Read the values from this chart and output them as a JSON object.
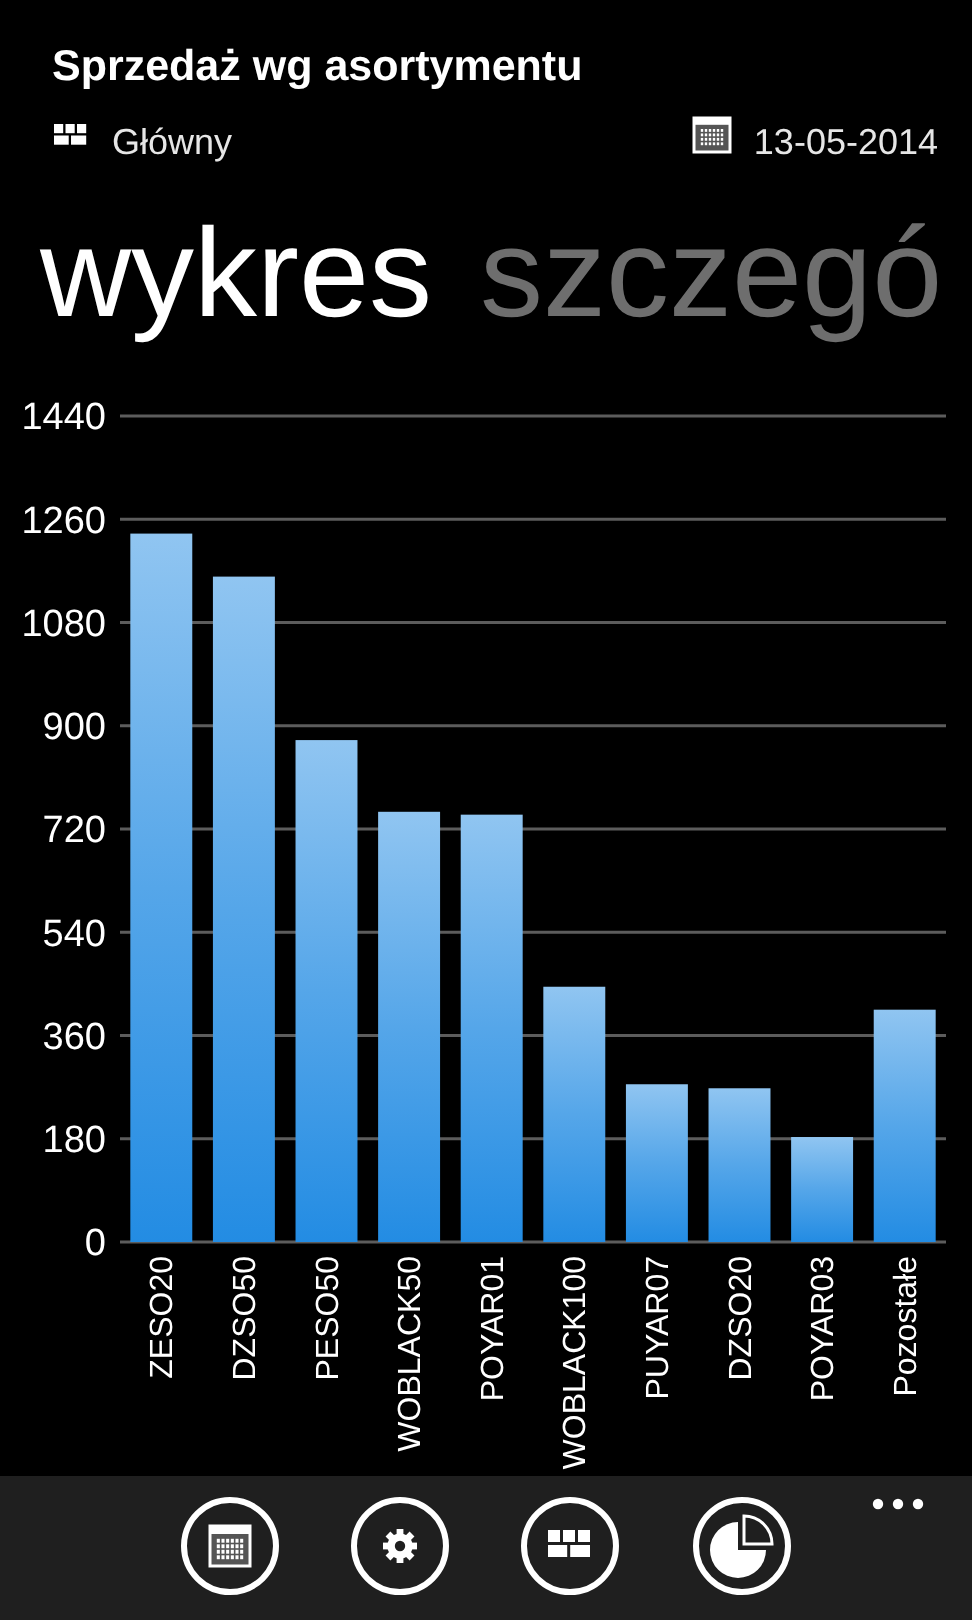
{
  "chart_data": {
    "type": "bar",
    "title": "Sprzedaż wg asortymentu",
    "annotations": [
      "Główny",
      "13-05-2014",
      "wykres",
      "szczegó"
    ],
    "categories": [
      "ZESO20",
      "DZSO50",
      "PESO50",
      "WOBLACK50",
      "POYAR01",
      "WOBLACK100",
      "PUYAR07",
      "DZSO20",
      "POYAR03",
      "Pozostałe"
    ],
    "values": [
      1235,
      1160,
      875,
      750,
      745,
      445,
      275,
      268,
      183,
      405
    ],
    "color": "#55a6e9",
    "ylim": [
      0,
      1440
    ],
    "yticks": [
      0,
      180,
      360,
      540,
      720,
      900,
      1080,
      1260,
      1440
    ],
    "grid": "y"
  }
}
